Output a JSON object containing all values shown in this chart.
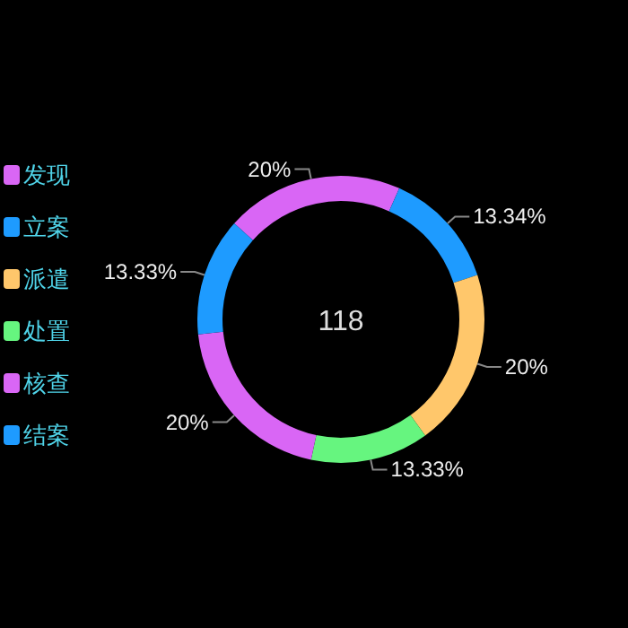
{
  "chart_data": {
    "type": "donut",
    "categories": [
      "发现",
      "立案",
      "派遣",
      "处置",
      "核查",
      "结案"
    ],
    "values": [
      20,
      13.34,
      20,
      13.33,
      20,
      13.33
    ],
    "colors": [
      "#d966f5",
      "#1e9bff",
      "#ffc76b",
      "#66f57f",
      "#d966f5",
      "#1e9bff"
    ],
    "value_labels": [
      "20%",
      "13.34%",
      "20%",
      "13.33%",
      "20%",
      "13.33%"
    ],
    "legend": "left",
    "annotations": [
      "118"
    ]
  }
}
